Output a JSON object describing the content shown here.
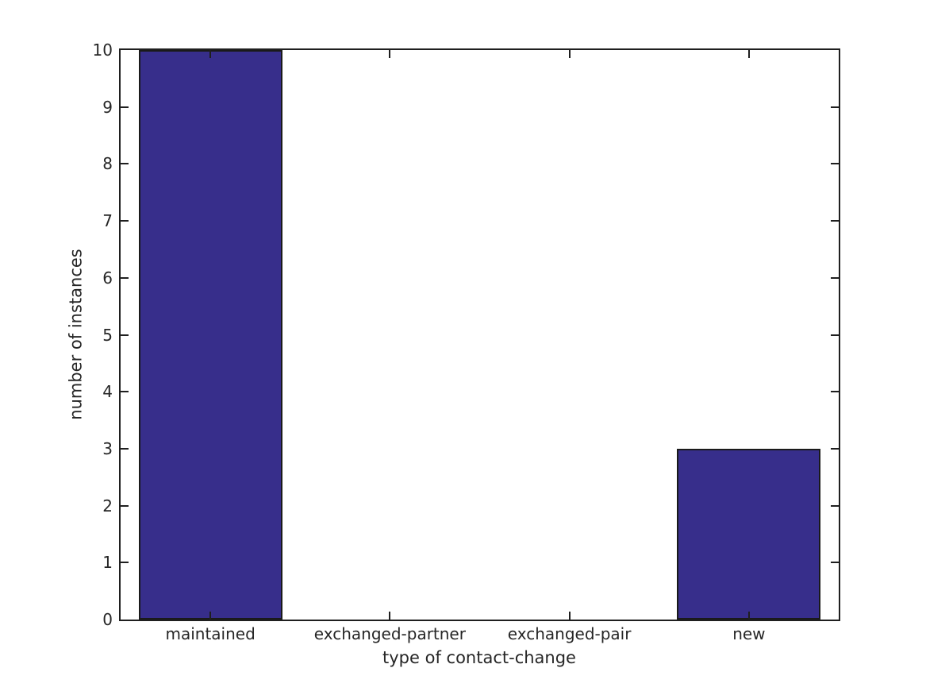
{
  "chart_data": {
    "type": "bar",
    "title": "",
    "categories": [
      "maintained",
      "exchanged-partner",
      "exchanged-pair",
      "new"
    ],
    "values": [
      10,
      0,
      0,
      3
    ],
    "xlabel": "type of contact-change",
    "ylabel": "number of instances",
    "ylim": [
      0,
      10
    ],
    "yticks": [
      0,
      1,
      2,
      3,
      4,
      5,
      6,
      7,
      8,
      9,
      10
    ],
    "bar_color": "#372E8B",
    "bar_edge_color": "#1a1a1a",
    "axis_color": "#1f1f1f",
    "text_color": "#262626",
    "bar_width_fraction": 0.8,
    "tick_direction": "in",
    "grid": false,
    "legend": null,
    "background_color": "#ffffff"
  }
}
